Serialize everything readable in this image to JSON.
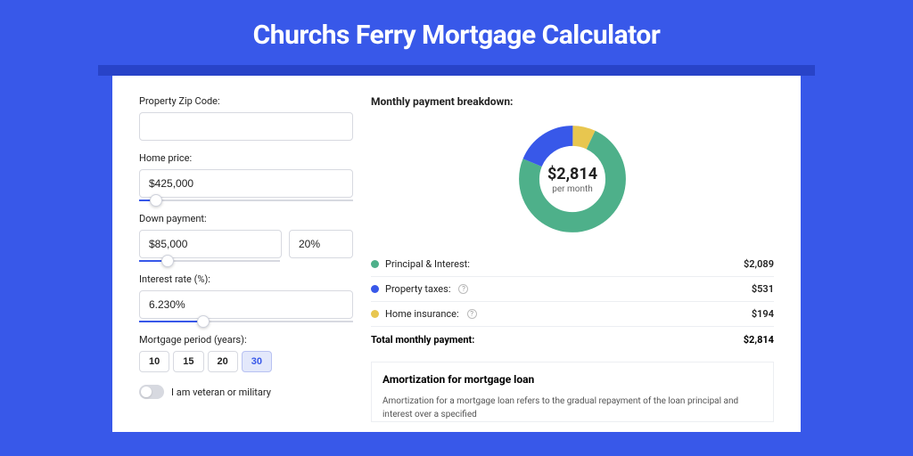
{
  "title": "Churchs Ferry Mortgage Calculator",
  "colors": {
    "page_bg": "#3858e9",
    "shadow_bg": "#2843c8",
    "card_bg": "#ffffff",
    "pi": "#3fa07a",
    "pi_alt": "#4eb08a",
    "tax": "#3858e9",
    "ins": "#e8c64f",
    "track": "#d7d9e0",
    "border": "#eceef2"
  },
  "form": {
    "zip_label": "Property Zip Code:",
    "zip_value": "",
    "price_label": "Home price:",
    "price_value": "$425,000",
    "price_slider_pct": 8,
    "down_label": "Down payment:",
    "down_value": "$85,000",
    "down_pct_value": "20%",
    "down_slider_pct": 20,
    "rate_label": "Interest rate (%):",
    "rate_value": "6.230%",
    "rate_slider_pct": 30,
    "period_label": "Mortgage period (years):",
    "periods": [
      "10",
      "15",
      "20",
      "30"
    ],
    "period_selected": "30",
    "veteran_label": "I am veteran or military"
  },
  "breakdown": {
    "title": "Monthly payment breakdown:",
    "center_amount": "$2,814",
    "center_sub": "per month",
    "donut": {
      "pi_pct": 74.2,
      "tax_pct": 18.9,
      "ins_pct": 6.9
    },
    "rows": [
      {
        "label": "Principal & Interest:",
        "value": "$2,089",
        "color": "#4eb08a",
        "help": false
      },
      {
        "label": "Property taxes:",
        "value": "$531",
        "color": "#3858e9",
        "help": true
      },
      {
        "label": "Home insurance:",
        "value": "$194",
        "color": "#e8c64f",
        "help": true
      }
    ],
    "total_label": "Total monthly payment:",
    "total_value": "$2,814"
  },
  "amortization": {
    "title": "Amortization for mortgage loan",
    "text": "Amortization for a mortgage loan refers to the gradual repayment of the loan principal and interest over a specified"
  }
}
